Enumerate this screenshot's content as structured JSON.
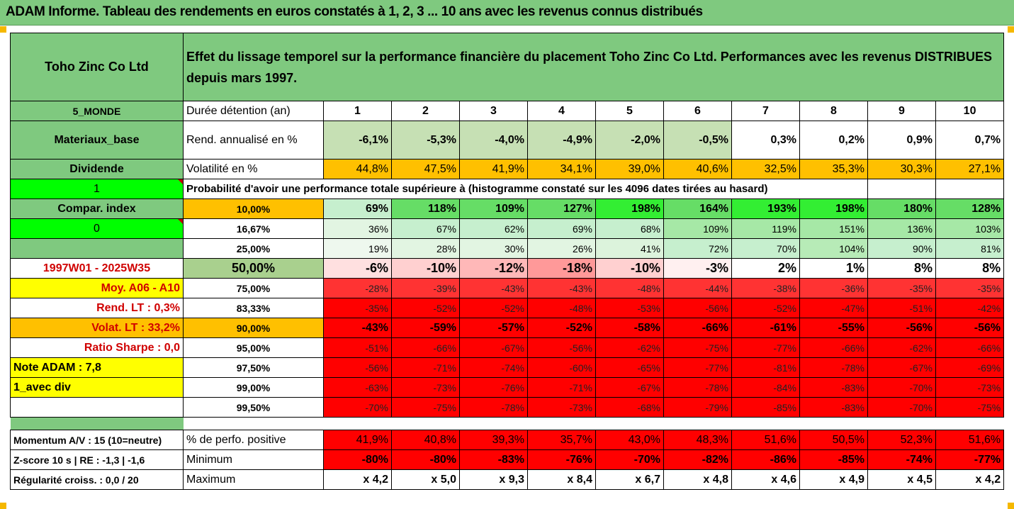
{
  "title": "ADAM Informe. Tableau des rendements en euros constatés à 1, 2, 3 ... 10 ans avec les revenus connus distribués",
  "colors": {
    "header_green": "#7fc97f",
    "orange": "#ffc000",
    "yellow": "#ffff00",
    "bright_green": "#00ff00",
    "light_green": "#c6e0b4",
    "red": "#ff0000",
    "pink": "#ffcccc"
  },
  "company": "Toho Zinc Co Ltd",
  "description": "Effet du lissage temporel sur la performance financière du placement Toho Zinc Co Ltd. Performances avec les revenus DISTRIBUES depuis mars 1997.",
  "left": {
    "zone": "5_MONDE",
    "sector": "Materiaux_base",
    "dividende": "Dividende",
    "one": "1",
    "compar": "Compar. index",
    "zero": "0",
    "period": "1997W01 - 2025W35",
    "moy": "Moy. A06 - A10",
    "rend_lt": "Rend. LT :   0,3%",
    "volat_lt": "Volat. LT :   33,2%",
    "sharpe": "Ratio Sharpe :   0,0",
    "note": "Note ADAM : 7,8",
    "avec_div": "1_avec div",
    "momentum": "Momentum A/V : 15 (10=neutre)",
    "zscore": "Z-score 10 s  | RE : -1,3  | -1,6",
    "regularite": "Régularité croiss. : 0,0 / 20"
  },
  "header": {
    "duree": "Durée détention (an)",
    "years": [
      "1",
      "2",
      "3",
      "4",
      "5",
      "6",
      "7",
      "8",
      "9",
      "10"
    ],
    "rend_label": "Rend. annualisé en %",
    "rend": [
      "-6,1%",
      "-5,3%",
      "-4,0%",
      "-4,9%",
      "-2,0%",
      "-0,5%",
      "0,3%",
      "0,2%",
      "0,9%",
      "0,7%"
    ],
    "vol_label": "Volatilité en %",
    "vol": [
      "44,8%",
      "47,5%",
      "41,9%",
      "34,1%",
      "39,0%",
      "40,6%",
      "32,5%",
      "35,3%",
      "30,3%",
      "27,1%"
    ],
    "proba_label": "Probabilité d'avoir une performance totale supérieure à (histogramme constaté sur les 4096 dates tirées au hasard)"
  },
  "rows": [
    {
      "p": "10,00%",
      "v": [
        "69%",
        "118%",
        "109%",
        "127%",
        "198%",
        "164%",
        "193%",
        "198%",
        "180%",
        "128%"
      ]
    },
    {
      "p": "16,67%",
      "v": [
        "36%",
        "67%",
        "62%",
        "69%",
        "68%",
        "109%",
        "119%",
        "151%",
        "136%",
        "103%"
      ]
    },
    {
      "p": "25,00%",
      "v": [
        "19%",
        "28%",
        "30%",
        "26%",
        "41%",
        "72%",
        "70%",
        "104%",
        "90%",
        "81%"
      ]
    },
    {
      "p": "50,00%",
      "v": [
        "-6%",
        "-10%",
        "-12%",
        "-18%",
        "-10%",
        "-3%",
        "2%",
        "1%",
        "8%",
        "8%"
      ]
    },
    {
      "p": "75,00%",
      "v": [
        "-28%",
        "-39%",
        "-43%",
        "-43%",
        "-48%",
        "-44%",
        "-38%",
        "-36%",
        "-35%",
        "-35%"
      ]
    },
    {
      "p": "83,33%",
      "v": [
        "-35%",
        "-52%",
        "-52%",
        "-48%",
        "-53%",
        "-56%",
        "-52%",
        "-47%",
        "-51%",
        "-42%"
      ]
    },
    {
      "p": "90,00%",
      "v": [
        "-43%",
        "-59%",
        "-57%",
        "-52%",
        "-58%",
        "-66%",
        "-61%",
        "-55%",
        "-56%",
        "-56%"
      ]
    },
    {
      "p": "95,00%",
      "v": [
        "-51%",
        "-66%",
        "-67%",
        "-56%",
        "-62%",
        "-75%",
        "-77%",
        "-66%",
        "-62%",
        "-66%"
      ]
    },
    {
      "p": "97,50%",
      "v": [
        "-56%",
        "-71%",
        "-74%",
        "-60%",
        "-65%",
        "-77%",
        "-81%",
        "-78%",
        "-67%",
        "-69%"
      ]
    },
    {
      "p": "99,00%",
      "v": [
        "-63%",
        "-73%",
        "-76%",
        "-71%",
        "-67%",
        "-78%",
        "-84%",
        "-83%",
        "-70%",
        "-73%"
      ]
    },
    {
      "p": "99,50%",
      "v": [
        "-70%",
        "-75%",
        "-78%",
        "-73%",
        "-68%",
        "-79%",
        "-85%",
        "-83%",
        "-70%",
        "-75%"
      ]
    }
  ],
  "bottom": {
    "pos_label": "% de perfo. positive",
    "pos": [
      "41,9%",
      "40,8%",
      "39,3%",
      "35,7%",
      "43,0%",
      "48,3%",
      "51,6%",
      "50,5%",
      "52,3%",
      "51,6%"
    ],
    "min_label": "Minimum",
    "min": [
      "-80%",
      "-80%",
      "-83%",
      "-76%",
      "-70%",
      "-82%",
      "-86%",
      "-85%",
      "-74%",
      "-77%"
    ],
    "max_label": "Maximum",
    "max": [
      "x 4,2",
      "x 5,0",
      "x 9,3",
      "x 8,4",
      "x 6,7",
      "x 4,8",
      "x 4,6",
      "x 4,9",
      "x 4,5",
      "x 4,2"
    ]
  }
}
